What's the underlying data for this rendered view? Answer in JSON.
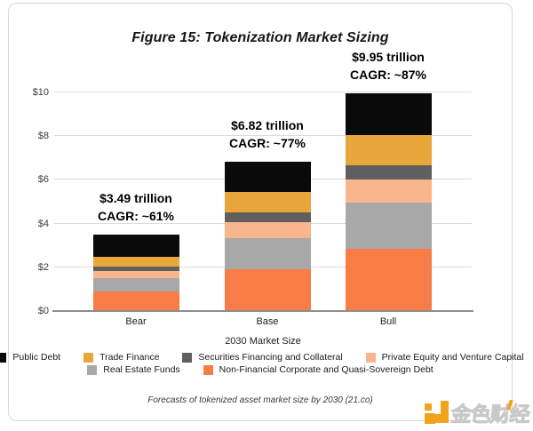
{
  "title": "Figure 15: Tokenization Market Sizing",
  "caption": "Forecasts of tokenized asset market size by 2030 (21.co)",
  "colors": {
    "axis_line": "#8e8e8e",
    "gridline": "#dcdcdc",
    "public_debt": "#0a0a0a",
    "trade_finance": "#e9a63b",
    "securities_financing": "#5f5f5f",
    "private_equity_vc": "#f9b68c",
    "real_estate_funds": "#a8a8a8",
    "non_financial_debt": "#f87c45",
    "logo_orange": "#f2a31b"
  },
  "chart_data": {
    "type": "bar",
    "stacked": true,
    "title": "Figure 15: Tokenization Market Sizing",
    "categories": [
      "Bear",
      "Base",
      "Bull"
    ],
    "xlabel": "2030 Market Size",
    "ylabel": "",
    "ylim": [
      0,
      10
    ],
    "unit": "trillion USD",
    "grid": true,
    "legend_position": "bottom",
    "yticks": [
      {
        "label": "$0",
        "value": 0
      },
      {
        "label": "$2",
        "value": 2
      },
      {
        "label": "$4",
        "value": 4
      },
      {
        "label": "$6",
        "value": 6
      },
      {
        "label": "$8",
        "value": 8
      },
      {
        "label": "$10",
        "value": 10
      }
    ],
    "series": [
      {
        "name": "Non-Financial Corporate and Quasi-Sovereign Debt",
        "color": "#f87c45",
        "values": [
          0.9,
          1.9,
          2.85
        ]
      },
      {
        "name": "Real Estate Funds",
        "color": "#a8a8a8",
        "values": [
          0.6,
          1.45,
          2.1
        ]
      },
      {
        "name": "Private Equity and Venture Capital",
        "color": "#f9b68c",
        "values": [
          0.35,
          0.7,
          1.05
        ]
      },
      {
        "name": "Securities Financing and Collateral",
        "color": "#5f5f5f",
        "values": [
          0.2,
          0.45,
          0.65
        ]
      },
      {
        "name": "Trade Finance",
        "color": "#e9a63b",
        "values": [
          0.45,
          0.95,
          1.4
        ]
      },
      {
        "name": "Public Debt",
        "color": "#0a0a0a",
        "values": [
          0.99,
          1.37,
          1.9
        ]
      }
    ],
    "totals": [
      {
        "category": "Bear",
        "total": 3.49,
        "label_line1": "$3.49 trillion",
        "label_line2": "CAGR: ~61%"
      },
      {
        "category": "Base",
        "total": 6.82,
        "label_line1": "$6.82 trillion",
        "label_line2": "CAGR: ~77%"
      },
      {
        "category": "Bull",
        "total": 9.95,
        "label_line1": "$9.95 trillion",
        "label_line2": "CAGR: ~87%"
      }
    ]
  },
  "legend": {
    "rows": [
      [
        {
          "label": "Public Debt",
          "color": "#0a0a0a"
        },
        {
          "label": "Trade Finance",
          "color": "#e9a63b"
        },
        {
          "label": "Securities Financing and Collateral",
          "color": "#5f5f5f"
        },
        {
          "label": "Private Equity and Venture Capital",
          "color": "#f9b68c"
        }
      ],
      [
        {
          "label": "Real Estate Funds",
          "color": "#a8a8a8"
        },
        {
          "label": "Non-Financial Corporate and Quasi-Sovereign Debt",
          "color": "#f87c45"
        }
      ]
    ]
  },
  "watermark": {
    "text": "金色财经",
    "icon": "jinse-logo-icon",
    "icon_color": "#f2a31b"
  }
}
